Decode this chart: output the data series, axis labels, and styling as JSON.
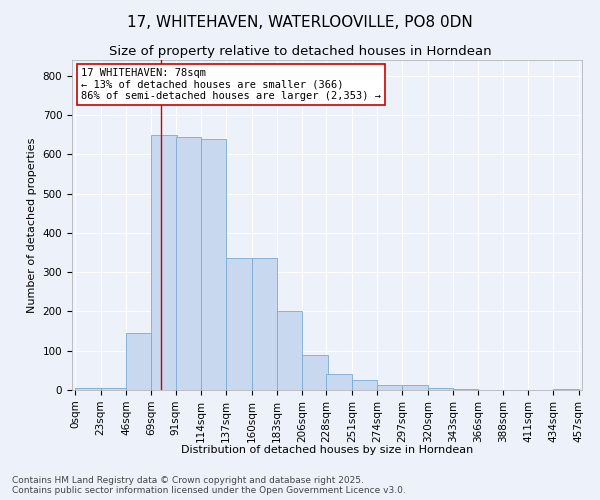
{
  "title_line1": "17, WHITEHAVEN, WATERLOOVILLE, PO8 0DN",
  "title_line2": "Size of property relative to detached houses in Horndean",
  "xlabel": "Distribution of detached houses by size in Horndean",
  "ylabel": "Number of detached properties",
  "bar_color": "#c8d8ee",
  "bar_edge_color": "#7aaad4",
  "background_color": "#edf2fa",
  "grid_color": "#ffffff",
  "annotation_box_color": "#cc0000",
  "annotation_line_color": "#cc0000",
  "annotation_text": "17 WHITEHAVEN: 78sqm\n← 13% of detached houses are smaller (366)\n86% of semi-detached houses are larger (2,353) →",
  "property_line_x": 78,
  "bin_width": 23,
  "bin_starts": [
    0,
    23,
    46,
    69,
    91,
    114,
    137,
    160,
    183,
    206,
    228,
    251,
    274,
    297,
    320,
    343,
    366,
    388,
    411,
    434
  ],
  "bin_labels": [
    "0sqm",
    "23sqm",
    "46sqm",
    "69sqm",
    "91sqm",
    "114sqm",
    "137sqm",
    "160sqm",
    "183sqm",
    "206sqm",
    "228sqm",
    "251sqm",
    "274sqm",
    "297sqm",
    "320sqm",
    "343sqm",
    "366sqm",
    "388sqm",
    "411sqm",
    "434sqm",
    "457sqm"
  ],
  "counts": [
    5,
    5,
    145,
    648,
    645,
    640,
    335,
    335,
    200,
    88,
    40,
    25,
    12,
    13,
    4,
    2,
    1,
    0,
    0,
    2
  ],
  "ylim": [
    0,
    840
  ],
  "yticks": [
    0,
    100,
    200,
    300,
    400,
    500,
    600,
    700,
    800
  ],
  "footer_text": "Contains HM Land Registry data © Crown copyright and database right 2025.\nContains public sector information licensed under the Open Government Licence v3.0.",
  "title_fontsize": 11,
  "subtitle_fontsize": 9.5,
  "axis_label_fontsize": 8,
  "tick_fontsize": 7.5,
  "annotation_fontsize": 7.5,
  "footer_fontsize": 6.5
}
